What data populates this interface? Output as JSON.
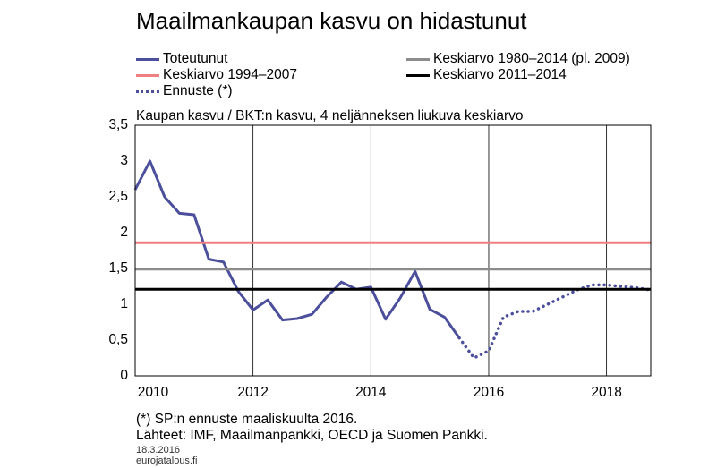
{
  "title": "Maailmankaupan kasvu on hidastunut",
  "legend": [
    {
      "label": "Toteutunut",
      "color": "#4b4f9c",
      "style": "solid"
    },
    {
      "label": "Keskiarvo 1980–2014 (pl. 2009)",
      "color": "#8c8c8c",
      "style": "solid"
    },
    {
      "label": "Keskiarvo 1994–2007",
      "color": "#f08080",
      "style": "solid"
    },
    {
      "label": "Keskiarvo 2011–2014",
      "color": "#000000",
      "style": "solid"
    },
    {
      "label": "Ennuste (*)",
      "color": "#4b4f9c",
      "style": "dotted"
    }
  ],
  "footnotes": {
    "note": "(*) SP:n ennuste maaliskuulta 2016.",
    "sources": "Lähteet: IMF, Maailmanpankki, OECD ja Suomen Pankki.",
    "date": "18.3.2016",
    "site": "eurojatalous.fi"
  },
  "chart_data": {
    "type": "line",
    "subtitle": "Kaupan kasvu / BKT:n kasvu, 4 neljänneksen liukuva keskiarvo",
    "xlabel": "",
    "ylabel": "",
    "ylim": [
      0,
      3.5
    ],
    "xlim": [
      2010.0,
      2018.75
    ],
    "x_ticks": [
      2010,
      2012,
      2014,
      2016,
      2018
    ],
    "y_ticks": [
      "0",
      "0,5",
      "1",
      "1,5",
      "2",
      "2,5",
      "3",
      "3,5"
    ],
    "grid": "vertical",
    "series": [
      {
        "name": "Toteutunut",
        "color": "#4b4f9c",
        "style": "solid",
        "x": [
          2010.0,
          2010.25,
          2010.5,
          2010.75,
          2011.0,
          2011.25,
          2011.5,
          2011.75,
          2012.0,
          2012.25,
          2012.5,
          2012.75,
          2013.0,
          2013.25,
          2013.5,
          2013.75,
          2014.0,
          2014.25,
          2014.5,
          2014.75,
          2015.0,
          2015.25,
          2015.5
        ],
        "y": [
          2.6,
          3.0,
          2.5,
          2.27,
          2.25,
          1.63,
          1.59,
          1.18,
          0.92,
          1.06,
          0.78,
          0.8,
          0.86,
          1.1,
          1.31,
          1.21,
          1.24,
          0.79,
          1.09,
          1.46,
          0.93,
          0.82,
          0.53
        ]
      },
      {
        "name": "Ennuste (*)",
        "color": "#4b4f9c",
        "style": "dotted",
        "x": [
          2015.5,
          2015.75,
          2016.0,
          2016.25,
          2016.5,
          2016.75,
          2017.0,
          2017.25,
          2017.5,
          2017.75,
          2018.0,
          2018.25,
          2018.5,
          2018.75
        ],
        "y": [
          0.53,
          0.25,
          0.35,
          0.82,
          0.9,
          0.9,
          1.0,
          1.1,
          1.2,
          1.27,
          1.27,
          1.25,
          1.23,
          1.2
        ]
      },
      {
        "name": "Keskiarvo 1980–2014 (pl. 2009)",
        "color": "#8c8c8c",
        "style": "solid",
        "x": [
          2010.0,
          2018.75
        ],
        "y": [
          1.49,
          1.49
        ]
      },
      {
        "name": "Keskiarvo 1994–2007",
        "color": "#f08080",
        "style": "solid",
        "x": [
          2010.0,
          2018.75
        ],
        "y": [
          1.86,
          1.86
        ]
      },
      {
        "name": "Keskiarvo 2011–2014",
        "color": "#000000",
        "style": "solid",
        "x": [
          2010.0,
          2018.75
        ],
        "y": [
          1.21,
          1.21
        ]
      }
    ]
  }
}
